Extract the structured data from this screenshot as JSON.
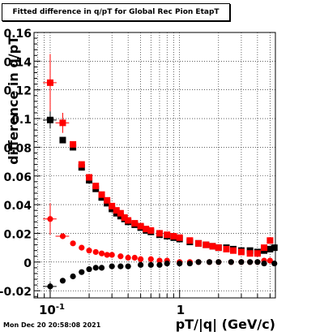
{
  "title": "Fitted difference in q/pT for Global Rec Pion EtapT",
  "footer": "Mon Dec 20 20:58:08 2021",
  "chart_data": {
    "type": "scatter",
    "title": "Fitted difference in q/pT for Global Rec Pion EtapT",
    "xlabel": "pT/|q| (GeV/c)",
    "ylabel": "difference in q/pT",
    "xscale": "log",
    "xlim": [
      0.075,
      5.5
    ],
    "ylim": [
      -0.025,
      0.16
    ],
    "grid": true,
    "legend": "none",
    "x_tick_labels": [
      "10^-1",
      "1"
    ],
    "y_tick_labels": [
      "-0.02",
      "0",
      "0.02",
      "0.04",
      "0.06",
      "0.08",
      "0.1",
      "0.12",
      "0.14",
      "0.16"
    ],
    "series": [
      {
        "color": "#000000",
        "marker": "square",
        "points": [
          [
            0.1,
            0.099
          ],
          [
            0.125,
            0.085
          ],
          [
            0.15,
            0.08
          ],
          [
            0.175,
            0.066
          ],
          [
            0.2,
            0.057
          ],
          [
            0.225,
            0.051
          ],
          [
            0.25,
            0.045
          ],
          [
            0.275,
            0.041
          ],
          [
            0.3,
            0.037
          ],
          [
            0.325,
            0.034
          ],
          [
            0.35,
            0.032
          ],
          [
            0.375,
            0.03
          ],
          [
            0.4,
            0.028
          ],
          [
            0.45,
            0.026
          ],
          [
            0.5,
            0.024
          ],
          [
            0.55,
            0.022
          ],
          [
            0.6,
            0.021
          ],
          [
            0.7,
            0.019
          ],
          [
            0.8,
            0.018
          ],
          [
            0.9,
            0.017
          ],
          [
            1.0,
            0.016
          ],
          [
            1.2,
            0.014
          ],
          [
            1.4,
            0.013
          ],
          [
            1.6,
            0.012
          ],
          [
            1.8,
            0.011
          ],
          [
            2.0,
            0.01
          ],
          [
            2.3,
            0.01
          ],
          [
            2.6,
            0.009
          ],
          [
            3.0,
            0.008
          ],
          [
            3.5,
            0.008
          ],
          [
            4.0,
            0.007
          ],
          [
            4.5,
            0.008
          ],
          [
            5.0,
            0.009
          ],
          [
            5.4,
            0.01
          ]
        ]
      },
      {
        "color": "#ff0000",
        "marker": "square",
        "points": [
          [
            0.1,
            0.125
          ],
          [
            0.125,
            0.097
          ],
          [
            0.15,
            0.082
          ],
          [
            0.175,
            0.068
          ],
          [
            0.2,
            0.059
          ],
          [
            0.225,
            0.053
          ],
          [
            0.25,
            0.047
          ],
          [
            0.275,
            0.043
          ],
          [
            0.3,
            0.039
          ],
          [
            0.325,
            0.036
          ],
          [
            0.35,
            0.034
          ],
          [
            0.375,
            0.031
          ],
          [
            0.4,
            0.029
          ],
          [
            0.45,
            0.027
          ],
          [
            0.5,
            0.025
          ],
          [
            0.55,
            0.023
          ],
          [
            0.6,
            0.022
          ],
          [
            0.7,
            0.02
          ],
          [
            0.8,
            0.019
          ],
          [
            0.9,
            0.018
          ],
          [
            1.0,
            0.017
          ],
          [
            1.2,
            0.015
          ],
          [
            1.4,
            0.013
          ],
          [
            1.6,
            0.012
          ],
          [
            1.8,
            0.011
          ],
          [
            2.0,
            0.01
          ],
          [
            2.3,
            0.009
          ],
          [
            2.6,
            0.008
          ],
          [
            3.0,
            0.007
          ],
          [
            3.5,
            0.006
          ],
          [
            4.0,
            0.006
          ],
          [
            4.5,
            0.01
          ],
          [
            5.0,
            0.015
          ]
        ]
      },
      {
        "color": "#ff0000",
        "marker": "circle",
        "points": [
          [
            0.1,
            0.03
          ],
          [
            0.125,
            0.018
          ],
          [
            0.15,
            0.013
          ],
          [
            0.175,
            0.01
          ],
          [
            0.2,
            0.008
          ],
          [
            0.225,
            0.007
          ],
          [
            0.25,
            0.006
          ],
          [
            0.275,
            0.005
          ],
          [
            0.3,
            0.005
          ],
          [
            0.35,
            0.004
          ],
          [
            0.4,
            0.003
          ],
          [
            0.45,
            0.003
          ],
          [
            0.5,
            0.002
          ],
          [
            0.6,
            0.002
          ],
          [
            0.7,
            0.001
          ],
          [
            0.8,
            0.001
          ],
          [
            1.0,
            0.0
          ],
          [
            1.2,
            0.0
          ],
          [
            1.4,
            0.0
          ],
          [
            1.7,
            0.0
          ],
          [
            2.0,
            0.0
          ],
          [
            2.5,
            0.0
          ],
          [
            3.0,
            0.0
          ],
          [
            3.5,
            0.0
          ],
          [
            4.0,
            0.0
          ],
          [
            4.5,
            0.001
          ],
          [
            5.0,
            0.001
          ]
        ]
      },
      {
        "color": "#000000",
        "marker": "circle",
        "points": [
          [
            0.1,
            -0.017
          ],
          [
            0.125,
            -0.013
          ],
          [
            0.15,
            -0.01
          ],
          [
            0.175,
            -0.007
          ],
          [
            0.2,
            -0.005
          ],
          [
            0.225,
            -0.004
          ],
          [
            0.25,
            -0.004
          ],
          [
            0.3,
            -0.003
          ],
          [
            0.35,
            -0.003
          ],
          [
            0.4,
            -0.003
          ],
          [
            0.5,
            -0.002
          ],
          [
            0.6,
            -0.002
          ],
          [
            0.7,
            -0.002
          ],
          [
            0.8,
            -0.001
          ],
          [
            1.0,
            -0.001
          ],
          [
            1.2,
            -0.001
          ],
          [
            1.4,
            0.0
          ],
          [
            1.7,
            0.0
          ],
          [
            2.0,
            0.0
          ],
          [
            2.5,
            0.0
          ],
          [
            3.0,
            0.0
          ],
          [
            3.5,
            0.0
          ],
          [
            4.0,
            0.0
          ],
          [
            4.5,
            -0.001
          ],
          [
            5.4,
            -0.001
          ]
        ]
      }
    ]
  }
}
